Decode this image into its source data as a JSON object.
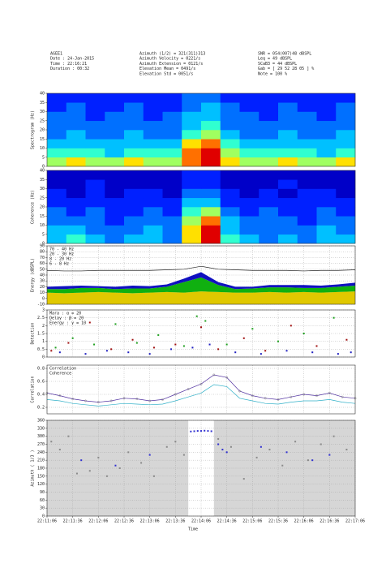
{
  "header": {
    "col1": [
      "AGEE1",
      "Date      : 24-Jan-2015",
      "Time      : 22:16:21",
      "Duration : 00:32"
    ],
    "col2": [
      "Azimuth (1/2)        = 321(311)313",
      "Azimuth Velocity    = 0221/s",
      "Azimuth Extension  = 0121/s",
      "Elevation Mean      = 0491/s",
      "Elevation Std        = 0051/s"
    ],
    "col3": [
      "SNR    = 054(007)48 dBSPL",
      "Leq    = 49 dBSPL",
      "SCaB3 = 44 dBSPL",
      "Gab    = [ 29 52 28 05 ] %",
      "Note   = 100 %"
    ]
  },
  "x_axis": {
    "xlim": [
      0,
      360
    ],
    "xlabel": "Time",
    "xticks": [
      {
        "value": 0,
        "label": "22:11:06"
      },
      {
        "value": 30,
        "label": "22:11:36"
      },
      {
        "value": 60,
        "label": "22:12:06"
      },
      {
        "value": 90,
        "label": "22:12:36"
      },
      {
        "value": 120,
        "label": "22:13:06"
      },
      {
        "value": 150,
        "label": "22:13:36"
      },
      {
        "value": 180,
        "label": "22:14:06"
      },
      {
        "value": 210,
        "label": "22:14:36"
      },
      {
        "value": 240,
        "label": "22:15:06"
      },
      {
        "value": 270,
        "label": "22:15:36"
      },
      {
        "value": 300,
        "label": "22:16:06"
      },
      {
        "value": 330,
        "label": "22:16:36"
      },
      {
        "value": 360,
        "label": "22:17:06"
      }
    ]
  },
  "chart_data": [
    {
      "type": "heatmap",
      "ylabel": "Spectrogram (Hz)",
      "ylim": [
        0,
        40
      ],
      "yticks": [
        0,
        5,
        10,
        15,
        20,
        25,
        30,
        35,
        40
      ],
      "grid": false,
      "ybins": [
        0,
        5,
        10,
        15,
        20,
        25,
        30,
        35,
        40
      ],
      "colormap": [
        "#00007f",
        "#0000c8",
        "#0020ff",
        "#0070ff",
        "#00c0ff",
        "#30ffd0",
        "#a0ff60",
        "#ffe000",
        "#ff7000",
        "#e00000"
      ],
      "z": [
        [
          6,
          7,
          6,
          6,
          7,
          6,
          6,
          8,
          9,
          7,
          6,
          6,
          7,
          6,
          6,
          7
        ],
        [
          5,
          5,
          5,
          4,
          5,
          5,
          5,
          8,
          9,
          6,
          5,
          5,
          5,
          5,
          4,
          5
        ],
        [
          4,
          4,
          4,
          4,
          4,
          4,
          4,
          7,
          8,
          5,
          4,
          4,
          4,
          4,
          4,
          4
        ],
        [
          3,
          4,
          3,
          3,
          4,
          3,
          3,
          5,
          6,
          4,
          3,
          3,
          4,
          3,
          3,
          4
        ],
        [
          3,
          3,
          3,
          3,
          3,
          3,
          3,
          4,
          5,
          3,
          3,
          3,
          3,
          3,
          3,
          3
        ],
        [
          3,
          3,
          2,
          3,
          3,
          2,
          3,
          4,
          4,
          3,
          3,
          2,
          3,
          3,
          2,
          3
        ],
        [
          2,
          3,
          2,
          2,
          3,
          2,
          2,
          3,
          4,
          3,
          2,
          2,
          3,
          2,
          2,
          3
        ],
        [
          2,
          2,
          2,
          2,
          2,
          2,
          2,
          3,
          3,
          2,
          2,
          2,
          2,
          2,
          2,
          2
        ]
      ]
    },
    {
      "type": "heatmap",
      "ylabel": "Coherence (Hz)",
      "ylim": [
        0,
        40
      ],
      "yticks": [
        0,
        5,
        10,
        15,
        20,
        25,
        30,
        35,
        40
      ],
      "grid": false,
      "ybins": [
        0,
        5,
        10,
        15,
        20,
        25,
        30,
        35,
        40
      ],
      "colormap": [
        "#00007f",
        "#0000c8",
        "#0020ff",
        "#0070ff",
        "#00c0ff",
        "#30ffd0",
        "#a0ff60",
        "#ffe000",
        "#ff7000",
        "#e00000"
      ],
      "z": [
        [
          4,
          5,
          4,
          3,
          4,
          4,
          3,
          7,
          9,
          5,
          4,
          3,
          4,
          3,
          4,
          4
        ],
        [
          4,
          4,
          3,
          3,
          3,
          4,
          3,
          7,
          9,
          4,
          3,
          3,
          3,
          3,
          4,
          3
        ],
        [
          3,
          3,
          3,
          2,
          3,
          3,
          3,
          6,
          8,
          4,
          3,
          3,
          3,
          2,
          3,
          3
        ],
        [
          3,
          2,
          3,
          2,
          2,
          3,
          2,
          5,
          6,
          3,
          2,
          3,
          2,
          2,
          3,
          2
        ],
        [
          2,
          2,
          2,
          2,
          2,
          2,
          2,
          4,
          4,
          2,
          2,
          2,
          2,
          2,
          2,
          2
        ],
        [
          2,
          1,
          2,
          1,
          2,
          2,
          1,
          3,
          3,
          2,
          1,
          2,
          1,
          2,
          2,
          1
        ],
        [
          1,
          1,
          2,
          1,
          1,
          1,
          1,
          2,
          2,
          1,
          1,
          1,
          2,
          1,
          1,
          1
        ],
        [
          1,
          1,
          1,
          1,
          1,
          1,
          1,
          2,
          2,
          1,
          1,
          1,
          1,
          1,
          1,
          1
        ]
      ]
    },
    {
      "type": "area",
      "ylabel": "Energy (dBSPL)",
      "ylim": [
        -10,
        90
      ],
      "yticks": [
        -10,
        0,
        10,
        20,
        30,
        40,
        50,
        60,
        70,
        80,
        90
      ],
      "grid": true,
      "x": [
        0,
        20,
        40,
        60,
        80,
        100,
        120,
        140,
        160,
        180,
        200,
        220,
        240,
        260,
        280,
        300,
        320,
        340,
        360
      ],
      "series": [
        {
          "name": "70 - 40 Hz",
          "color": "#222222",
          "stacked": false,
          "values": [
            48,
            47,
            47,
            48,
            48,
            48,
            48,
            49,
            50,
            55,
            50,
            49,
            48,
            48,
            48,
            47,
            48,
            48,
            49
          ]
        },
        {
          "name": "20 - 30 Hz",
          "color": "#1010c0",
          "stacked": true,
          "values": [
            4,
            5,
            4,
            3,
            4,
            5,
            4,
            4,
            6,
            9,
            5,
            4,
            3,
            4,
            4,
            5,
            4,
            4,
            5
          ]
        },
        {
          "name": "8 - 20 Hz",
          "color": "#10b010",
          "stacked": true,
          "values": [
            6,
            7,
            8,
            7,
            6,
            8,
            7,
            9,
            18,
            24,
            12,
            6,
            7,
            8,
            9,
            7,
            8,
            9,
            10
          ]
        },
        {
          "name": "6 - 8 Hz",
          "color": "#e0c800",
          "stacked": true,
          "values": [
            20,
            19,
            20,
            21,
            20,
            19,
            20,
            21,
            20,
            22,
            21,
            20,
            20,
            21,
            20,
            21,
            20,
            21,
            22
          ]
        }
      ]
    },
    {
      "type": "scatter",
      "ylabel": "Detection",
      "ylim": [
        0,
        3
      ],
      "yticks": [
        0,
        0.5,
        1,
        1.5,
        2,
        2.5,
        3
      ],
      "grid": true,
      "series": [
        {
          "name": "Mara  : α = 20",
          "color": "#20a020",
          "x": [
            10,
            30,
            55,
            80,
            105,
            130,
            160,
            175,
            185,
            210,
            240,
            270,
            300,
            335
          ],
          "values": [
            0.6,
            1.2,
            0.8,
            2.1,
            0.9,
            1.4,
            0.7,
            2.6,
            2.3,
            0.8,
            1.8,
            1.0,
            1.5,
            2.5
          ]
        },
        {
          "name": "Delay : β = 20",
          "color": "#a01010",
          "x": [
            5,
            25,
            50,
            75,
            100,
            125,
            150,
            180,
            200,
            230,
            255,
            285,
            315,
            350
          ],
          "values": [
            0.4,
            0.9,
            2.2,
            0.5,
            1.1,
            0.6,
            0.8,
            1.9,
            0.5,
            1.2,
            0.4,
            2.0,
            0.7,
            1.1
          ]
        },
        {
          "name": "Energy : γ = 10",
          "color": "#2020c0",
          "x": [
            15,
            45,
            70,
            95,
            120,
            145,
            170,
            190,
            220,
            250,
            280,
            310,
            340,
            355
          ],
          "values": [
            0.3,
            0.2,
            0.4,
            0.3,
            0.2,
            0.5,
            0.6,
            0.8,
            0.3,
            0.2,
            0.4,
            0.3,
            0.2,
            0.3
          ]
        }
      ]
    },
    {
      "type": "line",
      "ylabel": "Correlation",
      "ylim": [
        0.1,
        0.85
      ],
      "yticks": [
        0.2,
        0.4,
        0.6,
        0.8
      ],
      "grid": true,
      "x": [
        0,
        15,
        30,
        45,
        60,
        75,
        90,
        105,
        120,
        135,
        150,
        165,
        180,
        195,
        210,
        225,
        240,
        255,
        270,
        285,
        300,
        315,
        330,
        345,
        360
      ],
      "series": [
        {
          "name": "Correlation",
          "color": "#5030a0",
          "values": [
            0.42,
            0.38,
            0.33,
            0.3,
            0.28,
            0.3,
            0.34,
            0.33,
            0.3,
            0.32,
            0.4,
            0.48,
            0.56,
            0.7,
            0.66,
            0.45,
            0.38,
            0.34,
            0.32,
            0.36,
            0.4,
            0.38,
            0.42,
            0.36,
            0.34
          ]
        },
        {
          "name": "Coherence",
          "color": "#30b0c8",
          "values": [
            0.32,
            0.3,
            0.26,
            0.24,
            0.22,
            0.24,
            0.26,
            0.25,
            0.24,
            0.25,
            0.3,
            0.36,
            0.42,
            0.55,
            0.52,
            0.34,
            0.3,
            0.26,
            0.25,
            0.28,
            0.3,
            0.3,
            0.32,
            0.28,
            0.26
          ]
        }
      ]
    },
    {
      "type": "scatter",
      "ylabel": "Azimuth ( 1/3 )",
      "ylim": [
        0,
        360
      ],
      "yticks": [
        0,
        30,
        60,
        90,
        120,
        150,
        180,
        210,
        240,
        270,
        300,
        330,
        360
      ],
      "grid": true,
      "background": "#d6d6d6",
      "highlight": [
        165,
        195
      ],
      "series": [
        {
          "color": "#8a8a8a",
          "x": [
            5,
            15,
            25,
            35,
            50,
            60,
            70,
            85,
            95,
            110,
            125,
            140,
            150,
            160,
            200,
            215,
            230,
            245,
            260,
            275,
            290,
            305,
            320,
            335,
            350
          ],
          "values": [
            280,
            250,
            300,
            160,
            170,
            220,
            150,
            180,
            240,
            200,
            150,
            260,
            280,
            230,
            290,
            260,
            140,
            220,
            250,
            190,
            280,
            210,
            270,
            300,
            250
          ]
        },
        {
          "color": "#3030d0",
          "x": [
            40,
            80,
            120,
            200,
            205,
            210,
            250,
            280,
            310,
            330
          ],
          "values": [
            210,
            190,
            230,
            270,
            250,
            240,
            260,
            240,
            210,
            230
          ]
        },
        {
          "color": "#3030d0",
          "x": [
            168,
            172,
            176,
            180,
            184,
            188,
            192
          ],
          "values": [
            318,
            319,
            320,
            320,
            321,
            320,
            319
          ]
        }
      ]
    }
  ]
}
